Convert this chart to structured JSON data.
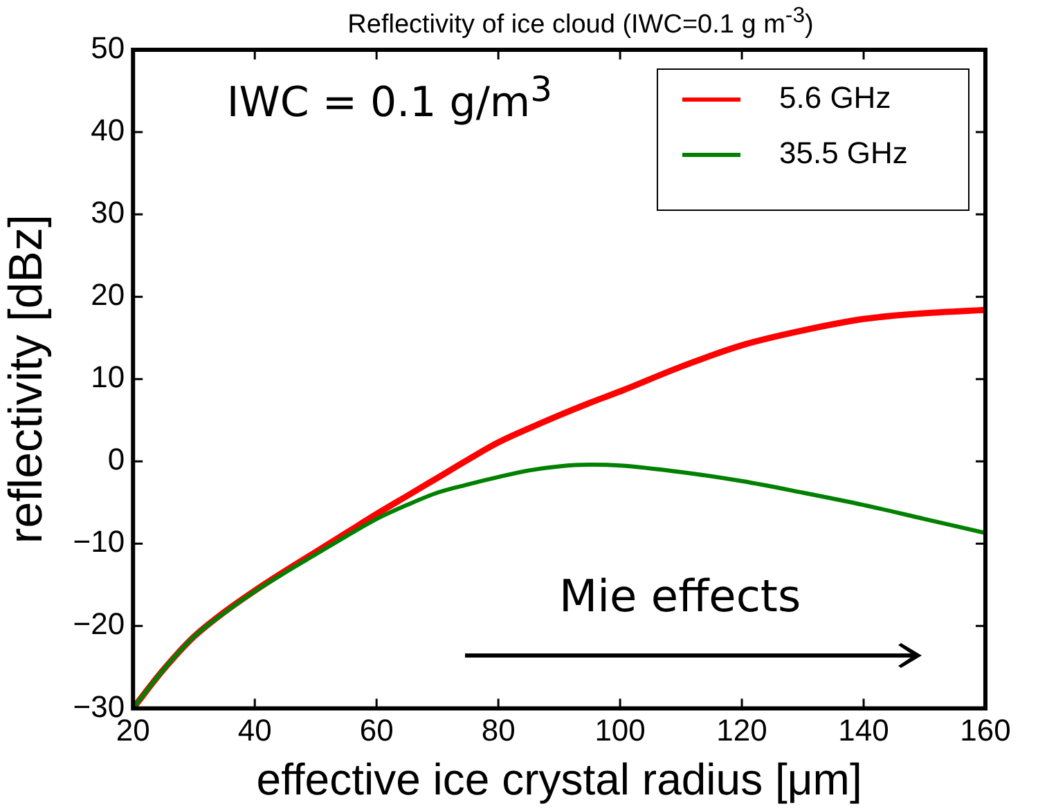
{
  "chart_data": {
    "type": "line",
    "title": "Reflectivity of ice cloud (IWC=0.1 g m$^{-3}$)",
    "xlabel": "effective ice crystal radius [μm]",
    "ylabel": "reflectivity [dBz]",
    "x": [
      20,
      25,
      30,
      35,
      40,
      45,
      50,
      55,
      60,
      65,
      70,
      75,
      80,
      85,
      90,
      95,
      100,
      110,
      120,
      130,
      140,
      150,
      160
    ],
    "series": [
      {
        "name": "5.6 GHz",
        "color": "#ff0000",
        "values": [
          -30,
          -25.3,
          -21.3,
          -18.3,
          -15.7,
          -13.3,
          -11,
          -8.7,
          -6.4,
          -4.2,
          -2,
          0.2,
          2.3,
          4,
          5.6,
          7.1,
          8.5,
          11.5,
          14.1,
          15.9,
          17.3,
          18,
          18.4
        ]
      },
      {
        "name": "35.5 GHz",
        "color": "#008000",
        "values": [
          -30,
          -25.3,
          -21.3,
          -18.4,
          -15.8,
          -13.5,
          -11.3,
          -9.1,
          -7,
          -5.3,
          -3.8,
          -2.8,
          -1.9,
          -1.1,
          -0.6,
          -0.4,
          -0.5,
          -1.3,
          -2.4,
          -3.8,
          -5.3,
          -7,
          -8.7
        ]
      }
    ],
    "xlim": [
      20,
      160
    ],
    "xticks": [
      20,
      40,
      60,
      80,
      100,
      120,
      140,
      160
    ],
    "ylim": [
      -30,
      50
    ],
    "yticks": [
      -30,
      -20,
      -10,
      0,
      10,
      20,
      30,
      40,
      50
    ],
    "grid": false,
    "legend": "top right",
    "marker": "none",
    "line_style": "solid",
    "annotations": [
      "IWC = 0.1 g/m$^{3}$",
      "Mie effects"
    ]
  }
}
